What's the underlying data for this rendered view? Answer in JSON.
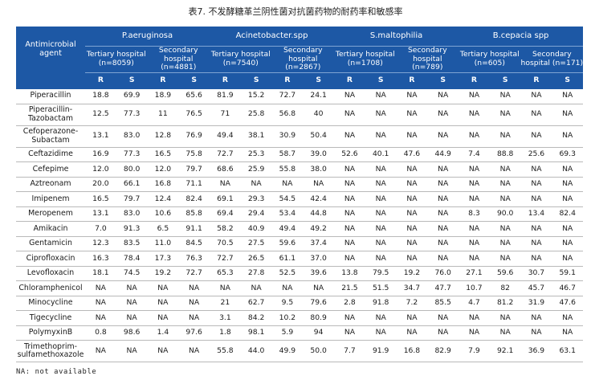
{
  "title": "表7. 不发酵糖革兰阴性菌对抗菌药物的耐药率和敏感率",
  "header": {
    "agent_label": "Antimicrobial agent",
    "organisms": [
      "P.aeruginosa",
      "Acinetobacter.spp",
      "S.maltophilia",
      "B.cepacia spp"
    ],
    "hospitals": [
      "Tertiary hospital (n=8059)",
      "Secondary hospital (n=4881)",
      "Tertiary hospital (n=7540)",
      "Secondary hospital (n=2867)",
      "Tertiary hospital (n=1708)",
      "Secondary hospital (n=789)",
      "Tertiary hospital (n=605)",
      "Secondary hospital (n=171)"
    ],
    "r_label": "R",
    "s_label": "S"
  },
  "rows": [
    {
      "agent": "Piperacillin",
      "values": [
        "18.8",
        "69.9",
        "18.9",
        "65.6",
        "81.9",
        "15.2",
        "72.7",
        "24.1",
        "NA",
        "NA",
        "NA",
        "NA",
        "NA",
        "NA",
        "NA",
        "NA"
      ]
    },
    {
      "agent": "Piperacillin-Tazobactam",
      "values": [
        "12.5",
        "77.3",
        "11",
        "76.5",
        "71",
        "25.8",
        "56.8",
        "40",
        "NA",
        "NA",
        "NA",
        "NA",
        "NA",
        "NA",
        "NA",
        "NA"
      ],
      "tall": true
    },
    {
      "agent": "Cefoperazone-Subactam",
      "values": [
        "13.1",
        "83.0",
        "12.8",
        "76.9",
        "49.4",
        "38.1",
        "30.9",
        "50.4",
        "NA",
        "NA",
        "NA",
        "NA",
        "NA",
        "NA",
        "NA",
        "NA"
      ],
      "tall": true
    },
    {
      "agent": "Ceftazidime",
      "values": [
        "16.9",
        "77.3",
        "16.5",
        "75.8",
        "72.7",
        "25.3",
        "58.7",
        "39.0",
        "52.6",
        "40.1",
        "47.6",
        "44.9",
        "7.4",
        "88.8",
        "25.6",
        "69.3"
      ]
    },
    {
      "agent": "Cefepime",
      "values": [
        "12.0",
        "80.0",
        "12.0",
        "79.7",
        "68.6",
        "25.9",
        "55.8",
        "38.0",
        "NA",
        "NA",
        "NA",
        "NA",
        "NA",
        "NA",
        "NA",
        "NA"
      ]
    },
    {
      "agent": "Aztreonam",
      "values": [
        "20.0",
        "66.1",
        "16.8",
        "71.1",
        "NA",
        "NA",
        "NA",
        "NA",
        "NA",
        "NA",
        "NA",
        "NA",
        "NA",
        "NA",
        "NA",
        "NA"
      ]
    },
    {
      "agent": "Imipenem",
      "values": [
        "16.5",
        "79.7",
        "12.4",
        "82.4",
        "69.1",
        "29.3",
        "54.5",
        "42.4",
        "NA",
        "NA",
        "NA",
        "NA",
        "NA",
        "NA",
        "NA",
        "NA"
      ]
    },
    {
      "agent": "Meropenem",
      "values": [
        "13.1",
        "83.0",
        "10.6",
        "85.8",
        "69.4",
        "29.4",
        "53.4",
        "44.8",
        "NA",
        "NA",
        "NA",
        "NA",
        "8.3",
        "90.0",
        "13.4",
        "82.4"
      ]
    },
    {
      "agent": "Amikacin",
      "values": [
        "7.0",
        "91.3",
        "6.5",
        "91.1",
        "58.2",
        "40.9",
        "49.4",
        "49.2",
        "NA",
        "NA",
        "NA",
        "NA",
        "NA",
        "NA",
        "NA",
        "NA"
      ]
    },
    {
      "agent": "Gentamicin",
      "values": [
        "12.3",
        "83.5",
        "11.0",
        "84.5",
        "70.5",
        "27.5",
        "59.6",
        "37.4",
        "NA",
        "NA",
        "NA",
        "NA",
        "NA",
        "NA",
        "NA",
        "NA"
      ]
    },
    {
      "agent": "Ciprofloxacin",
      "values": [
        "16.3",
        "78.4",
        "17.3",
        "76.3",
        "72.7",
        "26.5",
        "61.1",
        "37.0",
        "NA",
        "NA",
        "NA",
        "NA",
        "NA",
        "NA",
        "NA",
        "NA"
      ]
    },
    {
      "agent": "Levofloxacin",
      "values": [
        "18.1",
        "74.5",
        "19.2",
        "72.7",
        "65.3",
        "27.8",
        "52.5",
        "39.6",
        "13.8",
        "79.5",
        "19.2",
        "76.0",
        "27.1",
        "59.6",
        "30.7",
        "59.1"
      ]
    },
    {
      "agent": "Chloramphenicol",
      "values": [
        "NA",
        "NA",
        "NA",
        "NA",
        "NA",
        "NA",
        "NA",
        "NA",
        "21.5",
        "51.5",
        "34.7",
        "47.7",
        "10.7",
        "82",
        "45.7",
        "46.7"
      ]
    },
    {
      "agent": "Minocycline",
      "values": [
        "NA",
        "NA",
        "NA",
        "NA",
        "21",
        "62.7",
        "9.5",
        "79.6",
        "2.8",
        "91.8",
        "7.2",
        "85.5",
        "4.7",
        "81.2",
        "31.9",
        "47.6"
      ]
    },
    {
      "agent": "Tigecycline",
      "values": [
        "NA",
        "NA",
        "NA",
        "NA",
        "3.1",
        "84.2",
        "10.2",
        "80.9",
        "NA",
        "NA",
        "NA",
        "NA",
        "NA",
        "NA",
        "NA",
        "NA"
      ]
    },
    {
      "agent": "PolymyxinB",
      "values": [
        "0.8",
        "98.6",
        "1.4",
        "97.6",
        "1.8",
        "98.1",
        "5.9",
        "94",
        "NA",
        "NA",
        "NA",
        "NA",
        "NA",
        "NA",
        "NA",
        "NA"
      ]
    },
    {
      "agent": "Trimethoprim-sulfamethoxazole",
      "values": [
        "NA",
        "NA",
        "NA",
        "NA",
        "55.8",
        "44.0",
        "49.9",
        "50.0",
        "7.7",
        "91.9",
        "16.8",
        "82.9",
        "7.9",
        "92.1",
        "36.9",
        "63.1"
      ],
      "tall": true
    }
  ],
  "footnote": "NA: not available"
}
